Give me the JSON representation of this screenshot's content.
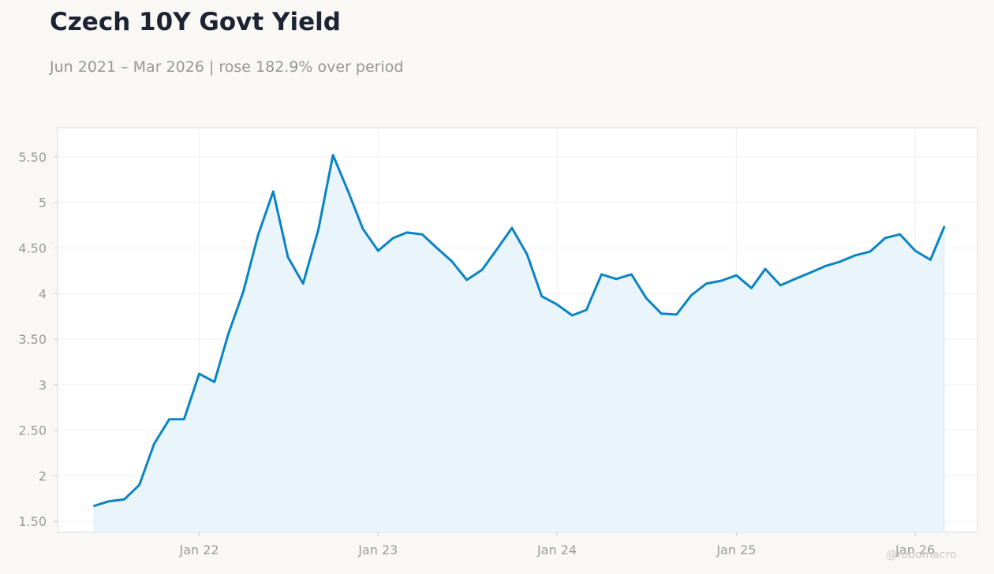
{
  "header": {
    "title": "Czech 10Y Govt Yield",
    "subtitle": "Jun 2021 – Mar 2026 | rose 182.9% over period"
  },
  "watermark": "@robomacro",
  "colors": {
    "line": "#0a84c4",
    "fill": "#e9f4fb",
    "background": "#f9f8f5",
    "plot_background": "#ffffff"
  },
  "chart_data": {
    "type": "area",
    "title": "Czech 10Y Govt Yield",
    "subtitle": "Jun 2021 – Mar 2026 | rose 182.9% over period",
    "xlabel": "",
    "ylabel": "",
    "ylim": [
      1.38,
      5.82
    ],
    "xlim": [
      "2021-03-18",
      "2026-05-08"
    ],
    "grid": true,
    "legend": "none",
    "y_ticks": [
      1.5,
      2,
      2.5,
      3,
      3.5,
      4,
      4.5,
      5,
      5.5
    ],
    "y_tick_labels": [
      "1.50",
      "2",
      "2.50",
      "3",
      "3.50",
      "4",
      "4.50",
      "5",
      "5.50"
    ],
    "x_ticks": [
      "2022-01-01",
      "2023-01-01",
      "2024-01-01",
      "2025-01-01",
      "2026-01-01"
    ],
    "x_tick_labels": [
      "Jan 22",
      "Jan 23",
      "Jan 24",
      "Jan 25",
      "Jan 26"
    ],
    "series": [
      {
        "x": [
          "2021-06-01",
          "2021-07-01",
          "2021-08-01",
          "2021-09-01",
          "2021-10-01",
          "2021-11-01",
          "2021-12-01",
          "2022-01-01",
          "2022-02-01",
          "2022-03-01",
          "2022-04-01",
          "2022-05-01",
          "2022-06-01",
          "2022-07-01",
          "2022-08-01",
          "2022-09-01",
          "2022-10-01",
          "2022-11-01",
          "2022-12-01",
          "2023-01-01",
          "2023-02-01",
          "2023-03-01",
          "2023-04-01",
          "2023-05-01",
          "2023-06-01",
          "2023-07-01",
          "2023-08-01",
          "2023-09-01",
          "2023-10-01",
          "2023-11-01",
          "2023-12-01",
          "2024-01-01",
          "2024-02-01",
          "2024-03-01",
          "2024-04-01",
          "2024-05-01",
          "2024-06-01",
          "2024-07-01",
          "2024-08-01",
          "2024-09-01",
          "2024-10-01",
          "2024-11-01",
          "2024-12-01",
          "2025-01-01",
          "2025-02-01",
          "2025-03-01",
          "2025-04-01",
          "2025-05-01",
          "2025-06-01",
          "2025-07-01",
          "2025-08-01",
          "2025-09-01",
          "2025-10-01",
          "2025-11-01",
          "2025-12-01",
          "2026-01-01",
          "2026-02-01",
          "2026-03-01"
        ],
        "values": [
          1.67,
          1.72,
          1.74,
          1.9,
          2.35,
          2.62,
          2.62,
          3.12,
          3.03,
          3.55,
          4.02,
          4.64,
          5.12,
          4.4,
          4.11,
          4.7,
          5.52,
          5.12,
          4.71,
          4.47,
          4.61,
          4.67,
          4.65,
          4.5,
          4.35,
          4.15,
          4.26,
          4.49,
          4.72,
          4.43,
          3.97,
          3.88,
          3.76,
          3.82,
          4.21,
          4.16,
          4.21,
          3.95,
          3.78,
          3.77,
          3.98,
          4.11,
          4.14,
          4.2,
          4.06,
          4.27,
          4.09,
          4.16,
          4.23,
          4.3,
          4.35,
          4.42,
          4.46,
          4.61,
          4.65,
          4.47,
          4.37,
          4.73
        ]
      }
    ]
  }
}
